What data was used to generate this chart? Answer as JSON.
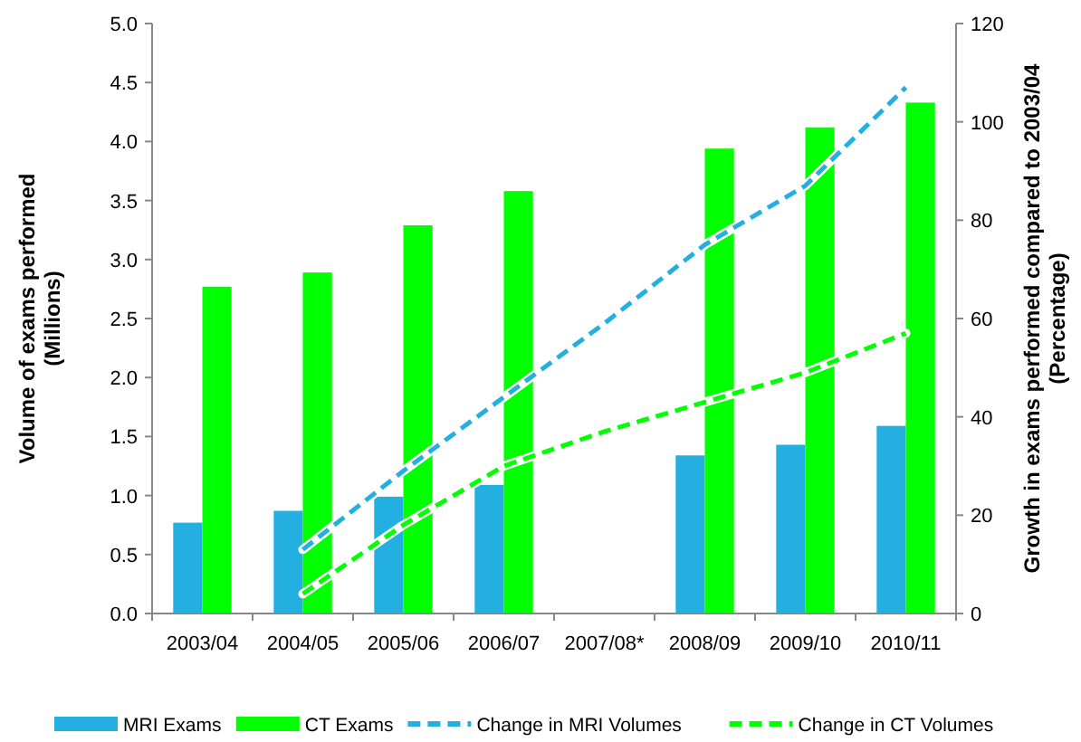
{
  "chart_data": {
    "type": "bar",
    "categories": [
      "2003/04",
      "2004/05",
      "2005/06",
      "2006/07",
      "2007/08*",
      "2008/09",
      "2009/10",
      "2010/11"
    ],
    "ylabel": "Volume of exams performed\n(Millions)",
    "y2label": "Growth in exams performed compared to 2003/04\n(Percentage)",
    "ylim": [
      0,
      5
    ],
    "yticks": [
      {
        "value": 0,
        "label": "0.0"
      },
      {
        "value": 0.5,
        "label": "0.5"
      },
      {
        "value": 1,
        "label": "1.0"
      },
      {
        "value": 1.5,
        "label": "1.5"
      },
      {
        "value": 2,
        "label": "2.0"
      },
      {
        "value": 2.5,
        "label": "2.5"
      },
      {
        "value": 3,
        "label": "3.0"
      },
      {
        "value": 3.5,
        "label": "3.5"
      },
      {
        "value": 4,
        "label": "4.0"
      },
      {
        "value": 4.5,
        "label": "4.5"
      },
      {
        "value": 5,
        "label": "5.0"
      }
    ],
    "y2lim": [
      0,
      120
    ],
    "y2ticks": [
      0,
      20,
      40,
      60,
      80,
      100,
      120
    ],
    "legend": "bottom",
    "grid": false,
    "series": [
      {
        "name": "MRI Exams",
        "color": "#23b0e0",
        "values": [
          0.77,
          0.87,
          0.99,
          1.09,
          null,
          1.34,
          1.43,
          1.59
        ]
      },
      {
        "name": "CT Exams",
        "color": "#00ff00",
        "values": [
          2.77,
          2.89,
          3.29,
          3.58,
          null,
          3.94,
          4.12,
          4.33
        ]
      },
      {
        "name": "Change in MRI Volumes",
        "type": "line",
        "axis": "y2",
        "line_style": "dashed",
        "color": "#23b0e0",
        "values": [
          null,
          13,
          29,
          44,
          59,
          75,
          87,
          107
        ]
      },
      {
        "name": "Change in CT Volumes",
        "type": "line",
        "axis": "y2",
        "line_style": "dashed",
        "color": "#00ff00",
        "values": [
          null,
          4,
          18,
          30,
          37,
          43,
          49,
          57
        ]
      }
    ]
  }
}
